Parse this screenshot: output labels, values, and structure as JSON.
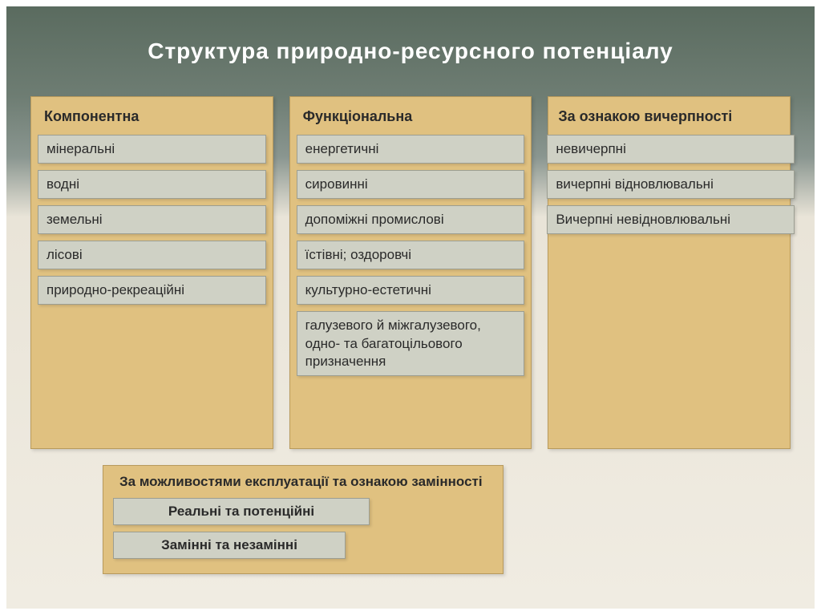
{
  "title": "Структура  природно-ресурсного потенціалу",
  "colors": {
    "column_bg": "#e0c180",
    "column_border": "#b89a5c",
    "item_bg": "#cfd1c5",
    "item_border": "#9c9e92",
    "title_color": "#ffffff",
    "text_color": "#2a2a2a",
    "gradient_top": "#5a6b5f",
    "gradient_bottom": "#f0ece2"
  },
  "columns": [
    {
      "header": "Компонентна",
      "items": [
        "мінеральні",
        "водні",
        "земельні",
        "лісові",
        "природно-рекреаційні"
      ]
    },
    {
      "header": "Функціональна",
      "items": [
        "енергетичні",
        "сировинні",
        "допоміжні промислові",
        "їстівні; оздоровчі",
        "культурно-естетичні",
        "галузевого й міжгалузевого,\nодно- та багатоцільового призначення"
      ]
    },
    {
      "header": "За ознакою вичерпності",
      "items": [
        "невичерпні",
        "вичерпні відновлювальні",
        "Вичерпні невідновлювальні"
      ]
    }
  ],
  "bottom": {
    "header": "За можливостями експлуатації та ознакою замінності",
    "items": [
      "Реальні та потенційні",
      "Замінні  та незамінні"
    ]
  }
}
